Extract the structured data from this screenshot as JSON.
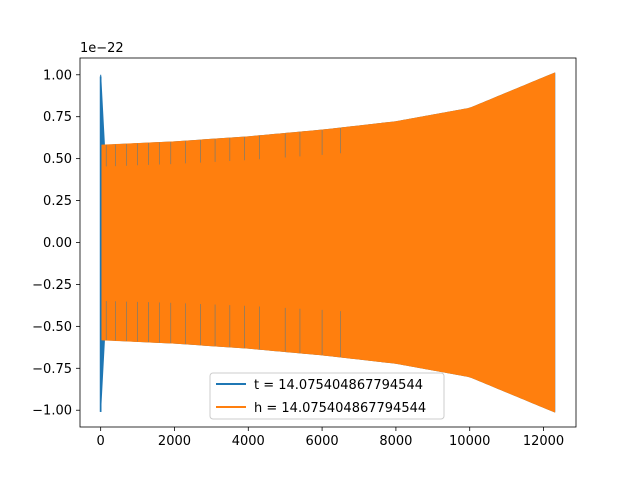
{
  "chart_data": {
    "type": "line",
    "title": "",
    "xlabel": "",
    "ylabel": "",
    "offset_text": "1e−22",
    "xlim": [
      -560,
      12880
    ],
    "ylim": [
      -1.1,
      1.1
    ],
    "xticks": [
      0,
      2000,
      4000,
      6000,
      8000,
      10000,
      12000
    ],
    "xtick_labels": [
      "0",
      "2000",
      "4000",
      "6000",
      "8000",
      "10000",
      "12000"
    ],
    "yticks": [
      1.0,
      0.75,
      0.5,
      0.25,
      0.0,
      -0.25,
      -0.5,
      -0.75,
      -1.0
    ],
    "ytick_labels": [
      "1.00",
      "0.75",
      "0.50",
      "0.25",
      "0.00",
      "−0.25",
      "−0.50",
      "−0.75",
      "−1.00"
    ],
    "grid": false,
    "legend_position": "lower center",
    "series": [
      {
        "name": "t = 14.075404867794544",
        "color": "#1f77b4",
        "x_range": [
          0,
          12300
        ],
        "envelope": [
          [
            0,
            1.0
          ],
          [
            100,
            0.58
          ],
          [
            2000,
            0.6
          ],
          [
            4000,
            0.63
          ],
          [
            6000,
            0.67
          ],
          [
            8000,
            0.72
          ],
          [
            10000,
            0.8
          ],
          [
            12300,
            1.01
          ]
        ],
        "spikes": [
          {
            "x": 0,
            "min": -1.01,
            "max": 0.99
          }
        ]
      },
      {
        "name": "h = 14.075404867794544",
        "color": "#ff7f0e",
        "x_range": [
          0,
          12300
        ],
        "envelope": [
          [
            0,
            0.58
          ],
          [
            2000,
            0.6
          ],
          [
            4000,
            0.63
          ],
          [
            6000,
            0.67
          ],
          [
            8000,
            0.72
          ],
          [
            10000,
            0.8
          ],
          [
            12300,
            1.01
          ]
        ]
      }
    ]
  }
}
